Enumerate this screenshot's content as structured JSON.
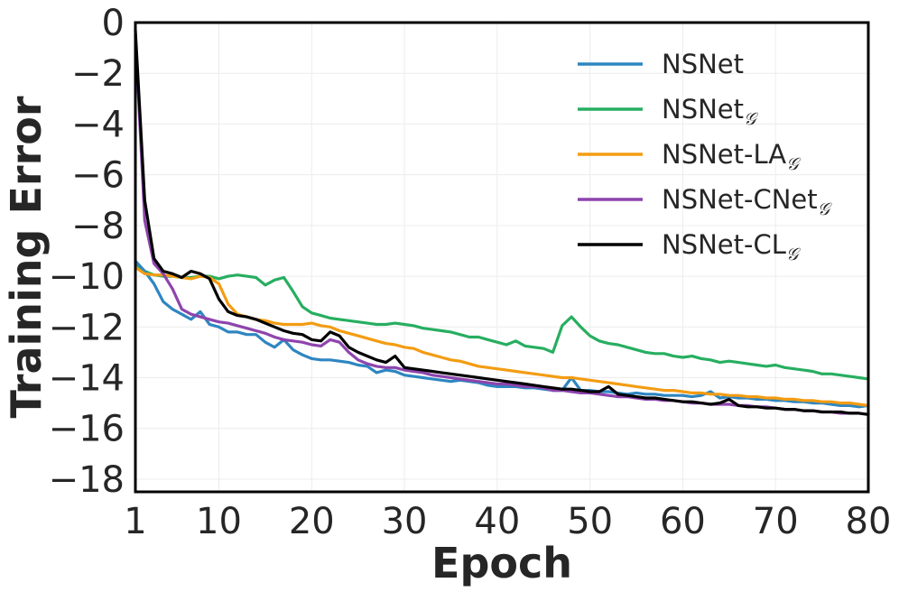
{
  "chart_data": {
    "type": "line",
    "title": "",
    "xlabel": "Epoch",
    "ylabel": "Training Error",
    "xlim": [
      1,
      80
    ],
    "ylim": [
      -18.5,
      0
    ],
    "xticks": [
      1,
      10,
      20,
      30,
      40,
      50,
      60,
      70,
      80
    ],
    "yticks": [
      0,
      -2,
      -4,
      -6,
      -8,
      -10,
      -12,
      -14,
      -16,
      -18
    ],
    "ytick_labels": [
      "0",
      "−2",
      "−4",
      "−6",
      "−8",
      "−10",
      "−12",
      "−14",
      "−16",
      "−18"
    ],
    "grid": true,
    "legend_position": "top-right",
    "x": [
      1,
      2,
      3,
      4,
      5,
      6,
      7,
      8,
      9,
      10,
      11,
      12,
      13,
      14,
      15,
      16,
      17,
      18,
      19,
      20,
      21,
      22,
      23,
      24,
      25,
      26,
      27,
      28,
      29,
      30,
      31,
      32,
      33,
      34,
      35,
      36,
      37,
      38,
      39,
      40,
      41,
      42,
      43,
      44,
      45,
      46,
      47,
      48,
      49,
      50,
      51,
      52,
      53,
      54,
      55,
      56,
      57,
      58,
      59,
      60,
      61,
      62,
      63,
      64,
      65,
      66,
      67,
      68,
      69,
      70,
      71,
      72,
      73,
      74,
      75,
      76,
      77,
      78,
      79,
      80
    ],
    "series": [
      {
        "name": "NSNet",
        "subscript": "",
        "color": "#2e86c1",
        "values": [
          -9.4,
          -9.8,
          -10.3,
          -11.0,
          -11.3,
          -11.5,
          -11.7,
          -11.4,
          -11.9,
          -12.0,
          -12.2,
          -12.2,
          -12.3,
          -12.3,
          -12.6,
          -12.8,
          -12.5,
          -12.9,
          -13.1,
          -13.25,
          -13.3,
          -13.3,
          -13.35,
          -13.4,
          -13.5,
          -13.55,
          -13.8,
          -13.7,
          -13.75,
          -13.9,
          -13.95,
          -14.0,
          -14.05,
          -14.1,
          -14.15,
          -14.1,
          -14.15,
          -14.2,
          -14.3,
          -14.35,
          -14.35,
          -14.35,
          -14.4,
          -14.4,
          -14.45,
          -14.5,
          -14.5,
          -14.0,
          -14.5,
          -14.5,
          -14.55,
          -14.55,
          -14.6,
          -14.65,
          -14.6,
          -14.65,
          -14.65,
          -14.7,
          -14.7,
          -14.7,
          -14.75,
          -14.7,
          -14.55,
          -14.8,
          -14.75,
          -14.8,
          -14.8,
          -14.85,
          -14.85,
          -14.9,
          -14.9,
          -14.95,
          -14.95,
          -15.0,
          -15.0,
          -15.05,
          -15.1,
          -15.1,
          -15.15,
          -15.1
        ]
      },
      {
        "name": "NSNet",
        "subscript": "𝒢",
        "color": "#27ae60",
        "values": [
          -9.5,
          -9.8,
          -9.95,
          -10.0,
          -10.0,
          -10.05,
          -10.05,
          -10.0,
          -10.0,
          -10.1,
          -10.0,
          -9.95,
          -10.0,
          -10.05,
          -10.35,
          -10.15,
          -10.05,
          -10.6,
          -11.2,
          -11.45,
          -11.55,
          -11.65,
          -11.7,
          -11.75,
          -11.8,
          -11.85,
          -11.9,
          -11.9,
          -11.85,
          -11.9,
          -11.95,
          -12.05,
          -12.1,
          -12.15,
          -12.2,
          -12.3,
          -12.4,
          -12.4,
          -12.5,
          -12.6,
          -12.7,
          -12.55,
          -12.75,
          -12.8,
          -12.85,
          -13.0,
          -11.95,
          -11.6,
          -12.0,
          -12.35,
          -12.55,
          -12.65,
          -12.7,
          -12.8,
          -12.9,
          -13.0,
          -13.05,
          -13.05,
          -13.15,
          -13.2,
          -13.15,
          -13.25,
          -13.3,
          -13.4,
          -13.35,
          -13.4,
          -13.45,
          -13.5,
          -13.55,
          -13.5,
          -13.6,
          -13.65,
          -13.7,
          -13.75,
          -13.85,
          -13.85,
          -13.9,
          -13.95,
          -14.0,
          -14.05
        ]
      },
      {
        "name": "NSNet-LA",
        "subscript": "𝒢",
        "color": "#f39c12",
        "values": [
          -9.65,
          -9.9,
          -9.95,
          -9.95,
          -10.0,
          -10.05,
          -10.1,
          -10.0,
          -10.05,
          -10.3,
          -11.1,
          -11.5,
          -11.6,
          -11.7,
          -11.75,
          -11.85,
          -11.9,
          -11.9,
          -11.9,
          -11.85,
          -11.95,
          -12.0,
          -12.15,
          -12.25,
          -12.35,
          -12.45,
          -12.55,
          -12.65,
          -12.7,
          -12.8,
          -12.85,
          -13.0,
          -13.1,
          -13.2,
          -13.3,
          -13.35,
          -13.45,
          -13.55,
          -13.6,
          -13.65,
          -13.7,
          -13.75,
          -13.8,
          -13.85,
          -13.9,
          -13.95,
          -14.0,
          -14.0,
          -14.05,
          -14.1,
          -14.15,
          -14.2,
          -14.25,
          -14.3,
          -14.35,
          -14.4,
          -14.45,
          -14.5,
          -14.5,
          -14.55,
          -14.6,
          -14.6,
          -14.65,
          -14.65,
          -14.7,
          -14.7,
          -14.75,
          -14.75,
          -14.8,
          -14.8,
          -14.85,
          -14.85,
          -14.9,
          -14.9,
          -14.95,
          -14.95,
          -15.0,
          -15.0,
          -15.05,
          -15.1
        ]
      },
      {
        "name": "NSNet-CNet",
        "subscript": "𝒢",
        "color": "#8e44ad",
        "values": [
          -0.5,
          -7.8,
          -9.5,
          -9.9,
          -10.5,
          -11.3,
          -11.5,
          -11.6,
          -11.7,
          -11.8,
          -11.85,
          -11.95,
          -12.05,
          -12.15,
          -12.25,
          -12.4,
          -12.5,
          -12.55,
          -12.6,
          -12.7,
          -12.75,
          -12.5,
          -12.6,
          -13.0,
          -13.3,
          -13.45,
          -13.55,
          -13.6,
          -13.6,
          -13.7,
          -13.75,
          -13.8,
          -13.9,
          -13.95,
          -14.0,
          -14.05,
          -14.1,
          -14.15,
          -14.2,
          -14.25,
          -14.25,
          -14.3,
          -14.35,
          -14.35,
          -14.4,
          -14.5,
          -14.5,
          -14.55,
          -14.6,
          -14.6,
          -14.65,
          -14.7,
          -14.75,
          -14.75,
          -14.8,
          -14.85,
          -14.85,
          -14.9,
          -14.9,
          -14.95,
          -15.0,
          -15.0,
          -15.05,
          -15.05,
          -15.05,
          -15.1,
          -15.1,
          -15.15,
          -15.15,
          -15.2,
          -15.25,
          -15.25,
          -15.3,
          -15.3,
          -15.35,
          -15.35,
          -15.4,
          -15.4,
          -15.4,
          -15.45
        ]
      },
      {
        "name": "NSNet-CL",
        "subscript": "𝒢",
        "color": "#000000",
        "values": [
          -0.3,
          -7.0,
          -9.3,
          -9.8,
          -9.9,
          -10.05,
          -9.8,
          -9.9,
          -10.1,
          -10.9,
          -11.4,
          -11.55,
          -11.6,
          -11.7,
          -11.85,
          -12.0,
          -12.15,
          -12.25,
          -12.3,
          -12.5,
          -12.55,
          -12.2,
          -12.35,
          -12.8,
          -13.0,
          -13.15,
          -13.3,
          -13.4,
          -13.15,
          -13.6,
          -13.65,
          -13.7,
          -13.75,
          -13.8,
          -13.85,
          -13.9,
          -13.95,
          -14.0,
          -14.05,
          -14.1,
          -14.15,
          -14.2,
          -14.25,
          -14.3,
          -14.35,
          -14.4,
          -14.45,
          -14.45,
          -14.5,
          -14.55,
          -14.55,
          -14.35,
          -14.65,
          -14.7,
          -14.75,
          -14.8,
          -14.8,
          -14.85,
          -14.9,
          -14.95,
          -14.95,
          -15.0,
          -15.05,
          -15.0,
          -14.85,
          -15.1,
          -15.15,
          -15.15,
          -15.2,
          -15.2,
          -15.25,
          -15.25,
          -15.3,
          -15.3,
          -15.35,
          -15.35,
          -15.35,
          -15.4,
          -15.4,
          -15.45
        ]
      }
    ]
  }
}
